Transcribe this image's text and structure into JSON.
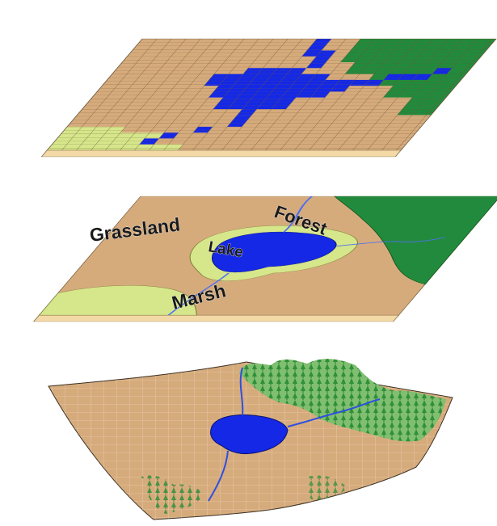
{
  "panels": [
    {
      "id": "raster",
      "labels": []
    },
    {
      "id": "vector",
      "labels": [
        "Grassland",
        "Forest",
        "Lake",
        "Marsh"
      ]
    },
    {
      "id": "surface",
      "labels": []
    }
  ],
  "colors": {
    "grassland": "#d6ab7c",
    "forest": "#228a3c",
    "lake": "#1428e6",
    "marsh": "#d6e68a",
    "slab_side": "#f3d9a5",
    "grid_line": "#6b5538"
  },
  "icons": [
    "tree-icon"
  ]
}
